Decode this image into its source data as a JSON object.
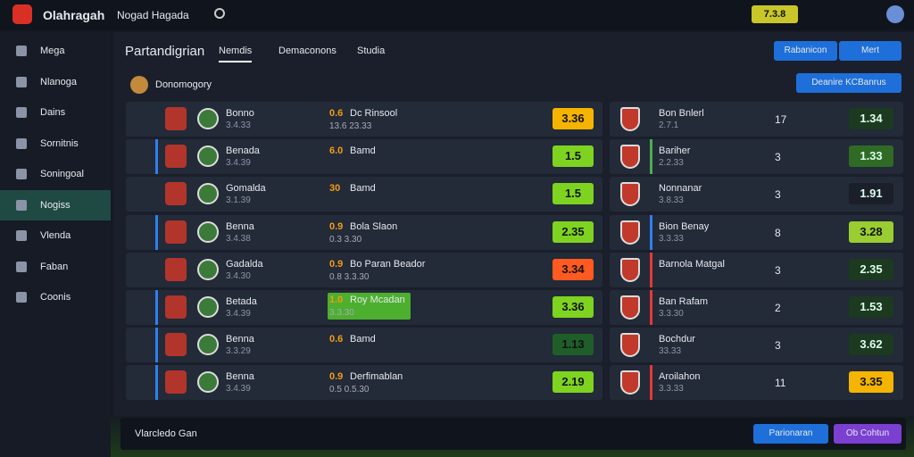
{
  "header": {
    "brand": "Olahragah",
    "user": "Nogad Hagada",
    "balance": "7.3.8"
  },
  "sidebar": [
    "Mega",
    "Nlanoga",
    "Dains",
    "Sornitnis",
    "Soningoal",
    "Nogiss",
    "Vlenda",
    "Faban",
    "Coonis"
  ],
  "page": {
    "title": "Partandigrian",
    "tabs": [
      "Nemdis",
      "Demaconons",
      "Studia"
    ],
    "buttons": [
      "Rabanicon",
      "Mert"
    ],
    "filter": "Donomogory",
    "action": "Deanire KCBanrus"
  },
  "left_rows": [
    {
      "name": "Bonno",
      "meta": "3.4.33",
      "time": "0.6",
      "event": "Dc Rinsool",
      "detail": "13.6  23.33",
      "odd": "3.36",
      "color": "#f5b400",
      "accent": "#232a38"
    },
    {
      "name": "Benada",
      "meta": "3.4.39",
      "time": "6.0",
      "event": "Bamd",
      "detail": "",
      "odd": "1.5",
      "color": "#7ed321",
      "accent": "#2f80ed"
    },
    {
      "name": "Gomalda",
      "meta": "3.1.39",
      "time": "30",
      "event": "Bamd",
      "detail": "",
      "odd": "1.5",
      "color": "#7ed321",
      "accent": "#232a38"
    },
    {
      "name": "Benna",
      "meta": "3.4.38",
      "time": "0.9",
      "event": "Bola Slaon",
      "detail": "0.3  3.30",
      "odd": "2.35",
      "color": "#7ed321",
      "accent": "#2f80ed"
    },
    {
      "name": "Gadalda",
      "meta": "3.4.30",
      "time": "0.9",
      "event": "Bo Paran Beador",
      "detail": "0.8  3.3.30",
      "odd": "3.34",
      "color": "#ff5a1f",
      "accent": "#232a38"
    },
    {
      "name": "Betada",
      "meta": "3.4.39",
      "time": "1.0",
      "event": "Roy Mcadan",
      "detail": "3.3.30",
      "odd": "3.36",
      "color": "#7ed321",
      "accent": "#2f80ed"
    },
    {
      "name": "Benna",
      "meta": "3.3.29",
      "time": "0.6",
      "event": "Bamd",
      "detail": "",
      "odd": "1.13",
      "color": "#1f5e28",
      "accent": "#2f80ed"
    },
    {
      "name": "Benna",
      "meta": "3.4.39",
      "time": "0.9",
      "event": "Derfimablan",
      "detail": "0.5  0.5.30",
      "odd": "2.19",
      "color": "#7ed321",
      "accent": "#2f80ed"
    }
  ],
  "right_rows": [
    {
      "name": "Bon Bnlerl",
      "meta": "2.7.1",
      "rank": "17",
      "odd": "1.34",
      "color": "#1c3a1f",
      "accent": "#232a38"
    },
    {
      "name": "Bariher",
      "meta": "2.2.33",
      "rank": "3",
      "odd": "1.33",
      "color": "#2f6b24",
      "accent": "#4caf50"
    },
    {
      "name": "Nonnanar",
      "meta": "3.8.33",
      "rank": "3",
      "odd": "1.91",
      "color": "#1a1f29",
      "accent": "#232a38"
    },
    {
      "name": "Bion Benay",
      "meta": "3.3.33",
      "rank": "8",
      "odd": "3.28",
      "color": "#9acd32",
      "accent": "#2f80ed"
    },
    {
      "name": "Barnola Matgal",
      "meta": "",
      "rank": "3",
      "odd": "2.35",
      "color": "#1c3a1f",
      "accent": "#e53935"
    },
    {
      "name": "Ban Rafam",
      "meta": "3.3.30",
      "rank": "2",
      "odd": "1.53",
      "color": "#1c3a1f",
      "accent": "#e53935"
    },
    {
      "name": "Bochdur",
      "meta": "33.33",
      "rank": "3",
      "odd": "3.62",
      "color": "#1c3a1f",
      "accent": "#232a38"
    },
    {
      "name": "Aroilahon",
      "meta": "3.3.33",
      "rank": "11",
      "odd": "3.35",
      "color": "#f5b400",
      "accent": "#e53935"
    }
  ],
  "footer": {
    "text": "Vlarcledo Gan",
    "buttons": [
      "Parionaran",
      "Ob Cohtun"
    ]
  }
}
